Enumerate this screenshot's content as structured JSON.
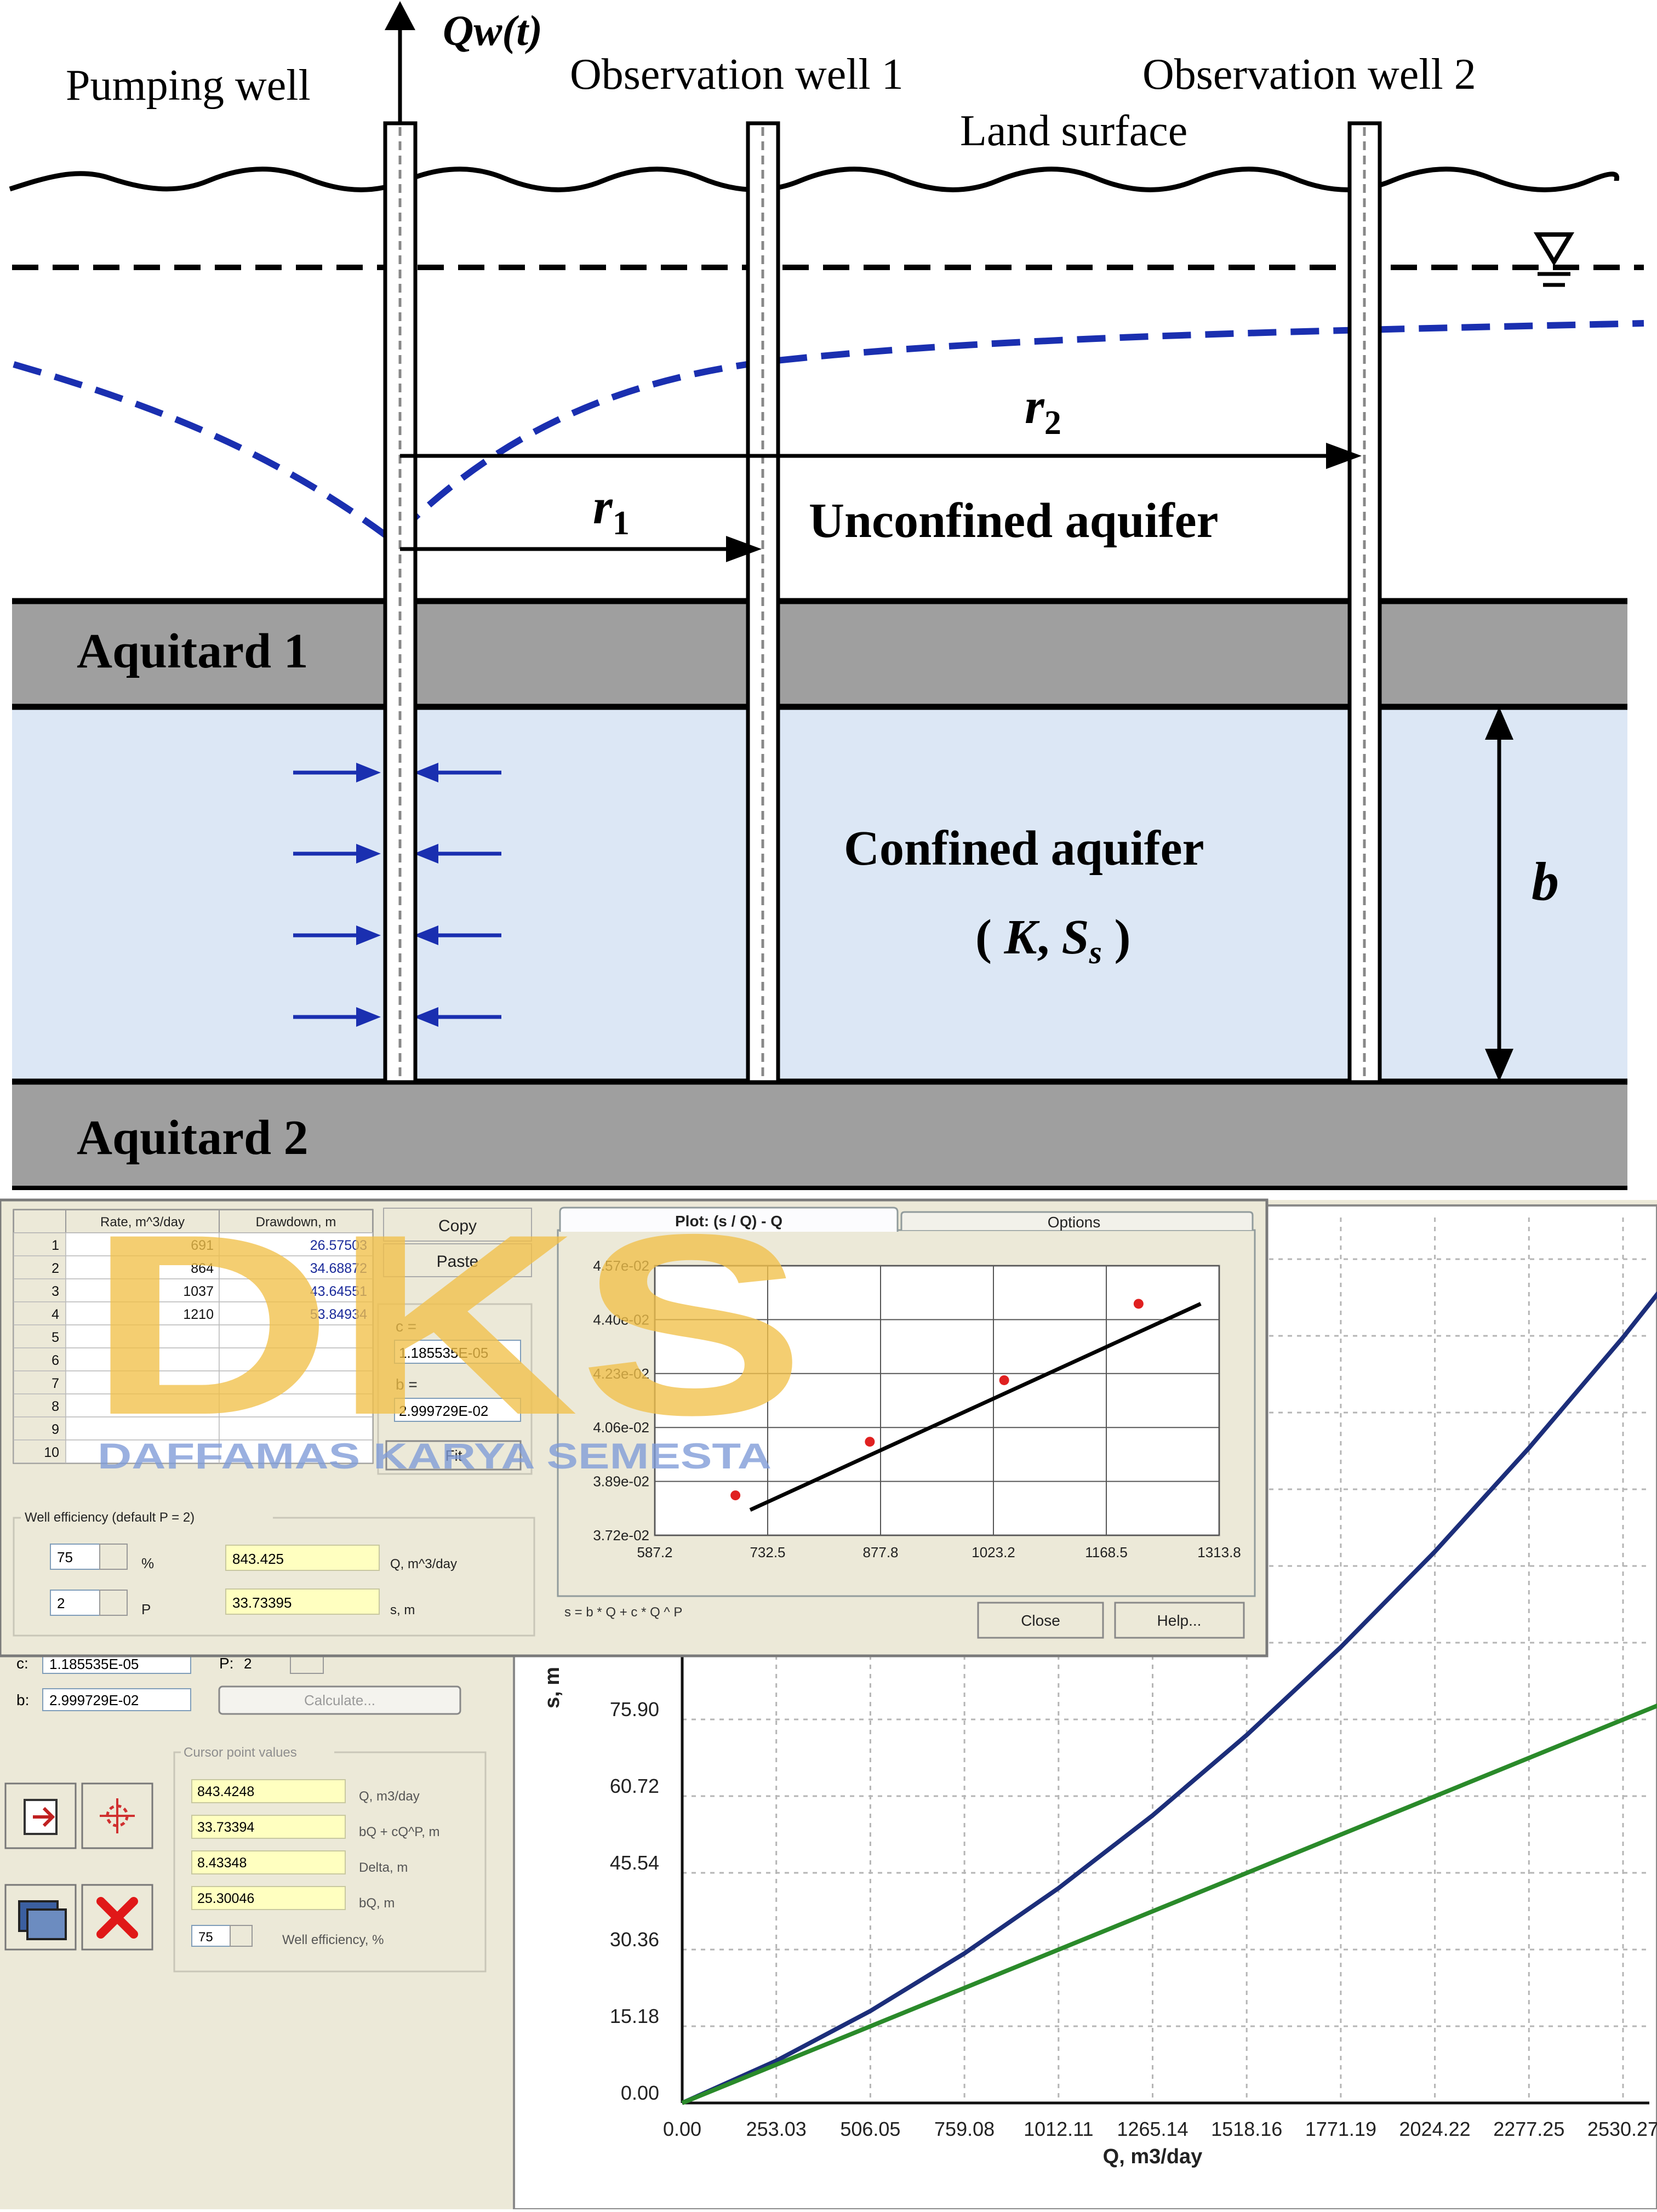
{
  "diagram": {
    "q_label": "Qw(t)",
    "pumping_well": "Pumping well",
    "obs_well_1": "Observation well 1",
    "obs_well_2": "Observation well 2",
    "land_surface": "Land surface",
    "r1": "r",
    "r1_sub": "1",
    "r2": "r",
    "r2_sub": "2",
    "unconfined": "Unconfined aquifer",
    "aquitard1": "Aquitard 1",
    "confined": "Confined aquifer",
    "confined_params_open": "( ",
    "confined_K": "K",
    "confined_comma": ", ",
    "confined_S": "S",
    "confined_s_sub": "s",
    "confined_params_close": " )",
    "b": "b",
    "aquitard2": "Aquitard 2",
    "colors": {
      "drawdown_curve": "#1a2fb0",
      "confined_fill": "#dce7f5",
      "aquitard_fill": "#9f9f9f",
      "flow_arrow": "#1a2fb0"
    }
  },
  "software": {
    "table": {
      "headers": [
        "",
        "Rate, m^3/day",
        "Drawdown, m"
      ],
      "rows": [
        [
          "1",
          "691",
          "26.57503"
        ],
        [
          "2",
          "864",
          "34.68872"
        ],
        [
          "3",
          "1037",
          "43.64551"
        ],
        [
          "4",
          "1210",
          "53.84934"
        ],
        [
          "5",
          "",
          ""
        ],
        [
          "6",
          "",
          ""
        ],
        [
          "7",
          "",
          ""
        ],
        [
          "8",
          "",
          ""
        ],
        [
          "9",
          "",
          ""
        ],
        [
          "10",
          "",
          ""
        ]
      ]
    },
    "copy_button": "Copy",
    "paste_button": "Paste",
    "c_label": "c =",
    "c_value": "1.185535E-05",
    "b_label": "b =",
    "b_value": "2.999729E-02",
    "fit_button": "Fit",
    "well_efficiency_group": "Well efficiency (default P = 2)",
    "eff_value": "75",
    "eff_unit": "%",
    "q_value": "843.425",
    "q_unit": "Q, m^3/day",
    "p_value": "2",
    "p_unit": "P",
    "s_value": "33.73395",
    "s_unit": "s, m",
    "plot_tab": "Plot: (s / Q) - Q",
    "options_tab": "Options",
    "plot_formula": "s = b * Q + c * Q ^ P",
    "close_button": "Close",
    "help_button": "Help...",
    "bottom_c_label": "c:",
    "bottom_c_value": "1.185535E-05",
    "bottom_b_label": "b:",
    "bottom_b_value": "2.999729E-02",
    "bottom_p_label": "P:",
    "bottom_p_value": "2",
    "calculate_button": "Calculate...",
    "cursor_group": "Cursor point values",
    "cursor_rows": [
      {
        "value": "843.4248",
        "label": "Q, m3/day"
      },
      {
        "value": "33.73394",
        "label": "bQ + cQ^P, m"
      },
      {
        "value": "8.43348",
        "label": "Delta, m"
      },
      {
        "value": "25.30046",
        "label": "bQ, m"
      }
    ],
    "cursor_eff_value": "75",
    "cursor_eff_label": "Well efficiency, %",
    "watermark_logo": "DKS",
    "watermark_text": "DAFFAMAS KARYA SEMESTA",
    "colors": {
      "field_yellow": "#ffffc0",
      "panel": "#ece9d8",
      "curve_blue": "#1c2e7a",
      "curve_green": "#2a8a2a",
      "points": "#e02020"
    }
  },
  "chart_data": [
    {
      "type": "scatter",
      "title": "Plot: (s / Q) - Q",
      "xlabel": "",
      "ylabel": "",
      "x_ticks": [
        "587.2",
        "732.5",
        "877.8",
        "1023.2",
        "1168.5",
        "1313.8"
      ],
      "y_ticks": [
        "3.72e-02",
        "3.89e-02",
        "4.06e-02",
        "4.23e-02",
        "4.40e-02",
        "4.57e-02"
      ],
      "xlim": [
        587.2,
        1313.8
      ],
      "ylim": [
        0.0372,
        0.0457
      ],
      "points": [
        [
          691,
          0.03846
        ],
        [
          864,
          0.04015
        ],
        [
          1037,
          0.04209
        ],
        [
          1210,
          0.0445
        ]
      ],
      "fit_line": [
        [
          710,
          0.038
        ],
        [
          1290,
          0.0445
        ]
      ],
      "grid": true
    },
    {
      "type": "line",
      "xlabel": "Q, m3/day",
      "ylabel": "s, m",
      "x_ticks": [
        "0.00",
        "253.03",
        "506.05",
        "759.08",
        "1012.11",
        "1265.14",
        "1518.16",
        "1771.19",
        "2024.22",
        "2277.25",
        "2530.27"
      ],
      "y_ticks": [
        "0.00",
        "15.18",
        "30.36",
        "45.54",
        "60.72",
        "75.90"
      ],
      "xlim": [
        0,
        2530.27
      ],
      "series": [
        {
          "x": [
            0,
            253.03,
            506.05,
            759.08,
            1012.11,
            1265.14,
            1518.16,
            1771.19,
            2024.22,
            2277.25,
            2530.27,
            2625
          ],
          "y": [
            0,
            8.35,
            18.2,
            29.6,
            42.5,
            56.9,
            72.8,
            90.2,
            109.1,
            129.6,
            151.5,
            160.3
          ]
        },
        {
          "x": [
            0,
            2625
          ],
          "y": [
            0,
            78.7
          ]
        }
      ],
      "grid": true
    }
  ]
}
